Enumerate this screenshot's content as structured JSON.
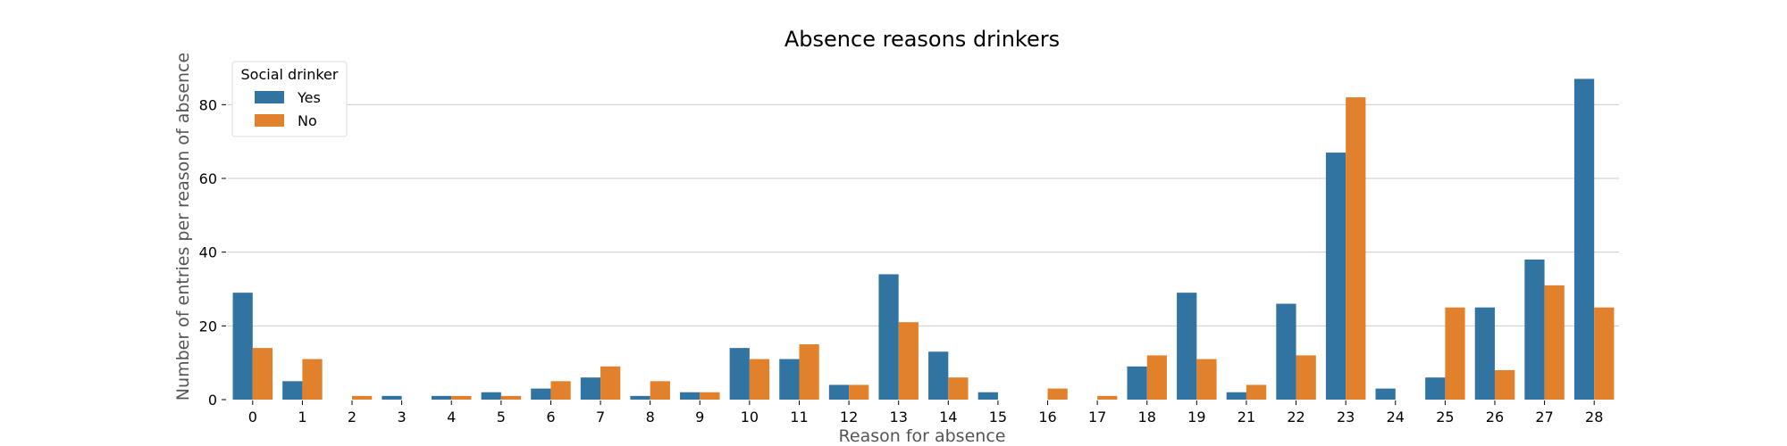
{
  "chart_data": {
    "type": "bar",
    "title": "Absence reasons drinkers",
    "xlabel": "Reason for absence",
    "ylabel": "Number of entries per reason of absence",
    "categories": [
      "0",
      "1",
      "2",
      "3",
      "4",
      "5",
      "6",
      "7",
      "8",
      "9",
      "10",
      "11",
      "12",
      "13",
      "14",
      "15",
      "16",
      "17",
      "18",
      "19",
      "21",
      "22",
      "23",
      "24",
      "25",
      "26",
      "27",
      "28"
    ],
    "series": [
      {
        "name": "Yes",
        "color": "#3274a1",
        "values": [
          29,
          5,
          0,
          1,
          1,
          2,
          3,
          6,
          1,
          2,
          14,
          11,
          4,
          34,
          13,
          2,
          0,
          0,
          9,
          29,
          2,
          26,
          67,
          3,
          6,
          25,
          38,
          87
        ]
      },
      {
        "name": "No",
        "color": "#e1812c",
        "values": [
          14,
          11,
          1,
          0,
          1,
          1,
          5,
          9,
          5,
          2,
          11,
          15,
          4,
          21,
          6,
          0,
          3,
          1,
          12,
          11,
          4,
          12,
          82,
          0,
          25,
          8,
          31,
          25
        ]
      }
    ],
    "ylim": [
      0,
      90
    ],
    "yticks": [
      0,
      20,
      40,
      60,
      80
    ],
    "grid": true,
    "legend": {
      "title": "Social drinker",
      "position": "top-left"
    }
  }
}
